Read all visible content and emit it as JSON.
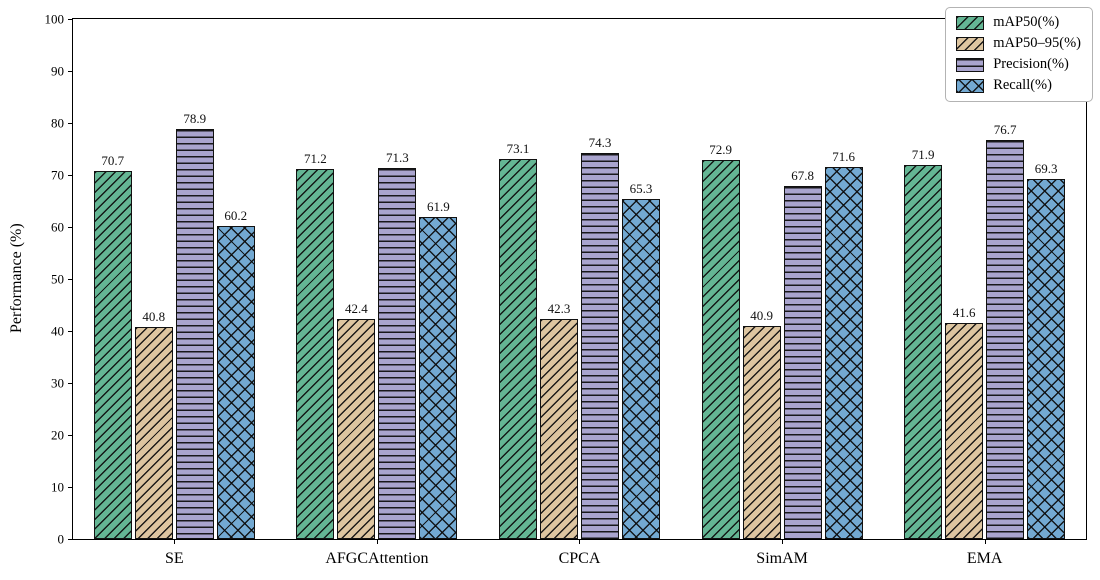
{
  "chart_data": {
    "type": "bar",
    "title": "",
    "xlabel": "",
    "ylabel": "Performance (%)",
    "ylim": [
      0,
      100
    ],
    "y_ticks": [
      0,
      10,
      20,
      30,
      40,
      50,
      60,
      70,
      80,
      90,
      100
    ],
    "grid": false,
    "legend_position": "upper right",
    "categories": [
      "SE",
      "AFGCAttention",
      "CPCA",
      "SimAM",
      "EMA"
    ],
    "series": [
      {
        "name": "mAP50(%)",
        "color": "#64b694",
        "hatch": "//",
        "values": [
          70.7,
          71.2,
          73.1,
          72.9,
          71.9
        ]
      },
      {
        "name": "mAP50–95(%)",
        "color": "#ddc5a0",
        "hatch": "//",
        "values": [
          40.8,
          42.4,
          42.3,
          40.9,
          41.6
        ]
      },
      {
        "name": "Precision(%)",
        "color": "#a9a4ce",
        "hatch": "--",
        "values": [
          78.9,
          71.3,
          74.3,
          67.8,
          76.7
        ]
      },
      {
        "name": "Recall(%)",
        "color": "#73a9d2",
        "hatch": "xx",
        "values": [
          60.2,
          61.9,
          65.3,
          71.6,
          69.3
        ]
      }
    ],
    "edge_color": "#111111",
    "value_label_decimals": 1
  }
}
